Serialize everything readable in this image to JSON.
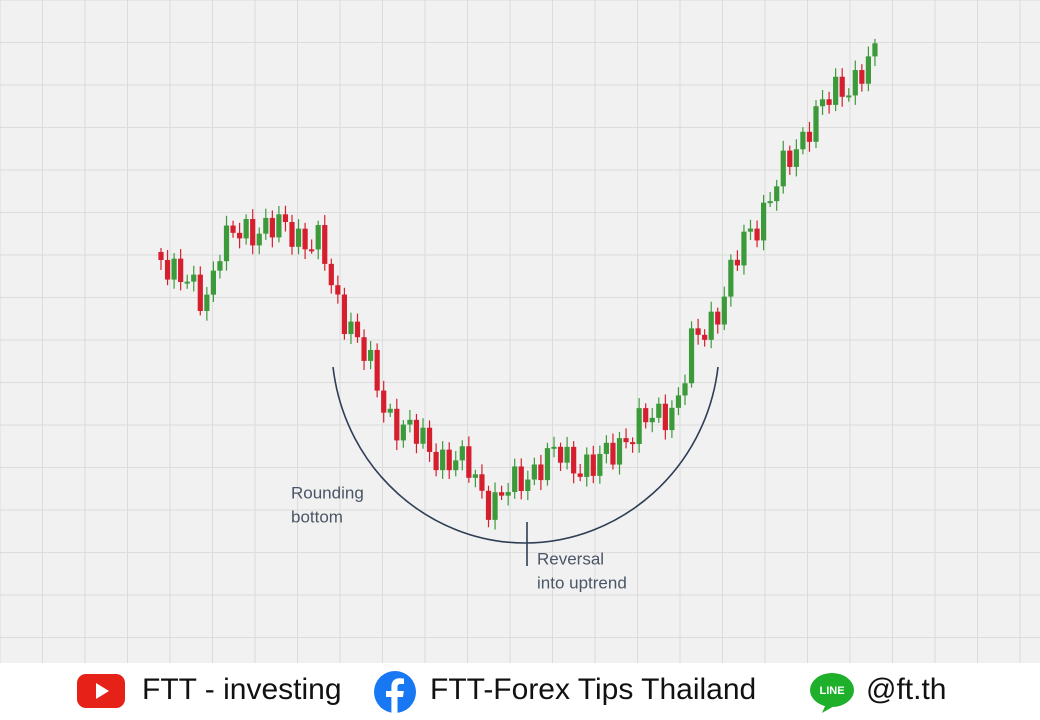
{
  "annotations": [
    {
      "lines": [
        "Rounding",
        "bottom"
      ]
    },
    {
      "lines": [
        "Reversal",
        "into uptrend"
      ]
    }
  ],
  "footer": [
    {
      "icon": "youtube",
      "text": "FTT - investing"
    },
    {
      "icon": "facebook",
      "text": "FTT-Forex Tips Thailand"
    },
    {
      "icon": "line",
      "text": "@ft.th"
    }
  ]
}
